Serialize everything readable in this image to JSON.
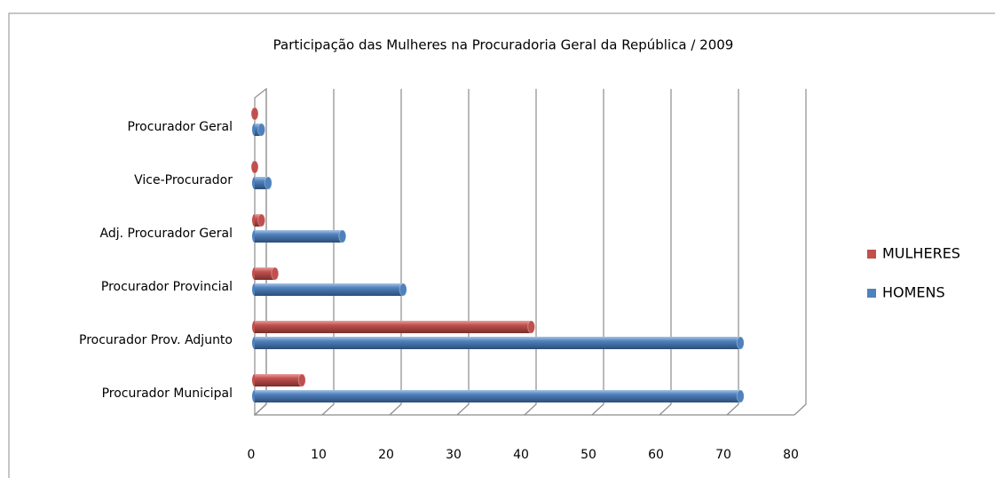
{
  "chart_data": {
    "type": "bar",
    "orientation": "horizontal",
    "title": "Participação das Mulheres na Procuradoria Geral da República / 2009",
    "categories": [
      "Procurador Geral",
      "Vice-Procurador",
      "Adj. Procurador Geral",
      "Procurador Provincial",
      "Procurador Prov. Adjunto",
      "Procurador Municipal"
    ],
    "series": [
      {
        "name": "MULHERES",
        "color": "#c0504d",
        "values": [
          0,
          0,
          1,
          3,
          41,
          7
        ]
      },
      {
        "name": "HOMENS",
        "color": "#4f81bd",
        "values": [
          1,
          2,
          13,
          22,
          72,
          72
        ]
      }
    ],
    "xlim": [
      0,
      80
    ],
    "xticks": [
      0,
      10,
      20,
      30,
      40,
      50,
      60,
      70,
      80
    ],
    "grid": true,
    "legend": "right"
  }
}
